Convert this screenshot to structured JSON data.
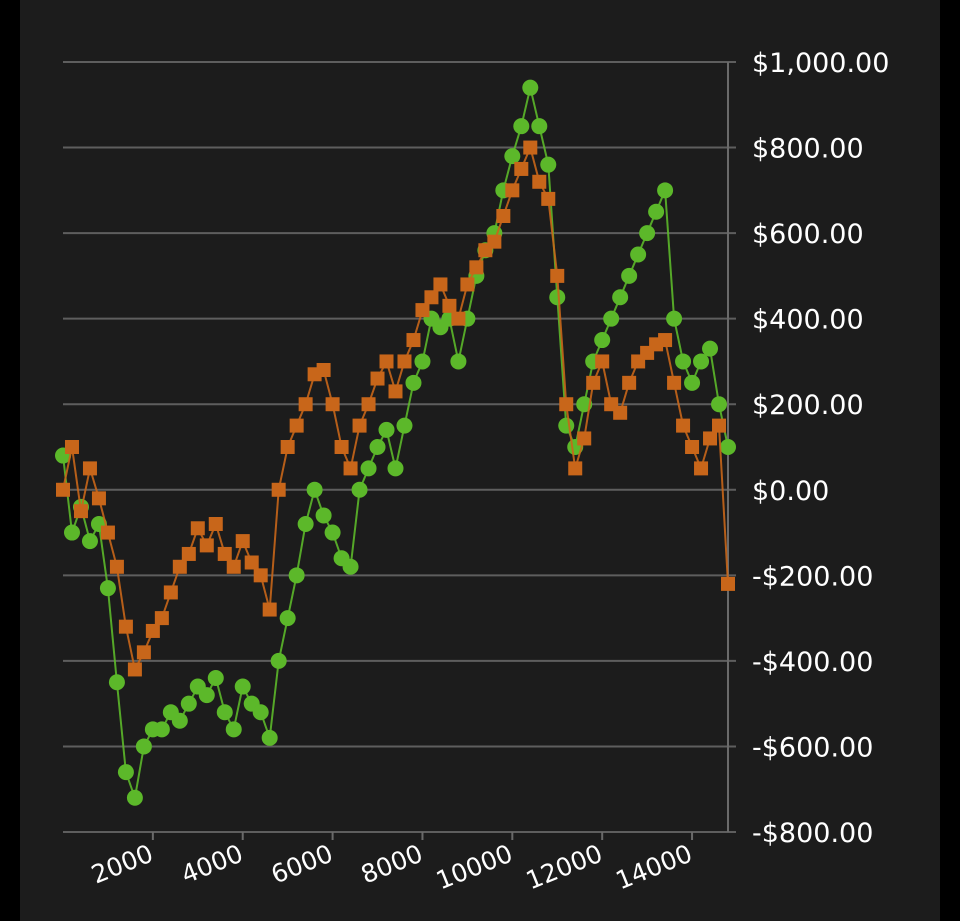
{
  "chart_data": {
    "type": "scatter",
    "title": "",
    "xlabel": "",
    "ylabel": "",
    "xlim": [
      0,
      14800
    ],
    "ylim": [
      -800,
      1000
    ],
    "x_ticks": [
      2000,
      4000,
      6000,
      8000,
      10000,
      12000,
      14000
    ],
    "x_tick_labels": [
      "2000",
      "4000",
      "6000",
      "8000",
      "10000",
      "12000",
      "14000"
    ],
    "y_ticks": [
      1000,
      800,
      600,
      400,
      200,
      0,
      -200,
      -400,
      -600,
      -800
    ],
    "y_tick_labels": [
      "$1,000.00",
      "$800.00",
      "$600.00",
      "$400.00",
      "$200.00",
      "$0.00",
      "-$200.00",
      "-$400.00",
      "-$600.00",
      "-$800.00"
    ],
    "y_axis_side": "right",
    "grid": "horizontal",
    "legend": "none",
    "series": [
      {
        "color": "#5cb82a",
        "marker": "circle",
        "x": [
          0,
          200,
          400,
          600,
          800,
          1000,
          1200,
          1400,
          1600,
          1800,
          2000,
          2200,
          2400,
          2600,
          2800,
          3000,
          3200,
          3400,
          3600,
          3800,
          4000,
          4200,
          4400,
          4600,
          4800,
          5000,
          5200,
          5400,
          5600,
          5800,
          6000,
          6200,
          6400,
          6600,
          6800,
          7000,
          7200,
          7400,
          7600,
          7800,
          8000,
          8200,
          8400,
          8600,
          8800,
          9000,
          9200,
          9400,
          9600,
          9800,
          10000,
          10200,
          10400,
          10600,
          10800,
          11000,
          11200,
          11400,
          11600,
          11800,
          12000,
          12200,
          12400,
          12600,
          12800,
          13000,
          13200,
          13400,
          13600,
          13800,
          14000,
          14200,
          14400,
          14600,
          14800
        ],
        "y": [
          80,
          -100,
          -40,
          -120,
          -80,
          -230,
          -450,
          -660,
          -720,
          -600,
          -560,
          -560,
          -520,
          -540,
          -500,
          -460,
          -480,
          -440,
          -520,
          -560,
          -460,
          -500,
          -520,
          -580,
          -400,
          -300,
          -200,
          -80,
          0,
          -60,
          -100,
          -160,
          -180,
          0,
          50,
          100,
          140,
          50,
          150,
          250,
          300,
          400,
          380,
          400,
          300,
          400,
          500,
          560,
          600,
          700,
          780,
          850,
          940,
          850,
          760,
          450,
          150,
          100,
          200,
          300,
          350,
          400,
          450,
          500,
          550,
          600,
          650,
          700,
          400,
          300,
          250,
          300,
          330,
          200,
          100
        ]
      },
      {
        "color": "#c8661a",
        "marker": "square",
        "x": [
          0,
          200,
          400,
          600,
          800,
          1000,
          1200,
          1400,
          1600,
          1800,
          2000,
          2200,
          2400,
          2600,
          2800,
          3000,
          3200,
          3400,
          3600,
          3800,
          4000,
          4200,
          4400,
          4600,
          4800,
          5000,
          5200,
          5400,
          5600,
          5800,
          6000,
          6200,
          6400,
          6600,
          6800,
          7000,
          7200,
          7400,
          7600,
          7800,
          8000,
          8200,
          8400,
          8600,
          8800,
          9000,
          9200,
          9400,
          9600,
          9800,
          10000,
          10200,
          10400,
          10600,
          10800,
          11000,
          11200,
          11400,
          11600,
          11800,
          12000,
          12200,
          12400,
          12600,
          12800,
          13000,
          13200,
          13400,
          13600,
          13800,
          14000,
          14200,
          14400,
          14600,
          14800
        ],
        "y": [
          0,
          100,
          -50,
          50,
          -20,
          -100,
          -180,
          -320,
          -420,
          -380,
          -330,
          -300,
          -240,
          -180,
          -150,
          -90,
          -130,
          -80,
          -150,
          -180,
          -120,
          -170,
          -200,
          -280,
          0,
          100,
          150,
          200,
          270,
          280,
          200,
          100,
          50,
          150,
          200,
          260,
          300,
          230,
          300,
          350,
          420,
          450,
          480,
          430,
          400,
          480,
          520,
          560,
          580,
          640,
          700,
          750,
          800,
          720,
          680,
          500,
          200,
          50,
          120,
          250,
          300,
          200,
          180,
          250,
          300,
          320,
          340,
          350,
          250,
          150,
          100,
          50,
          120,
          150,
          -220
        ]
      }
    ]
  }
}
